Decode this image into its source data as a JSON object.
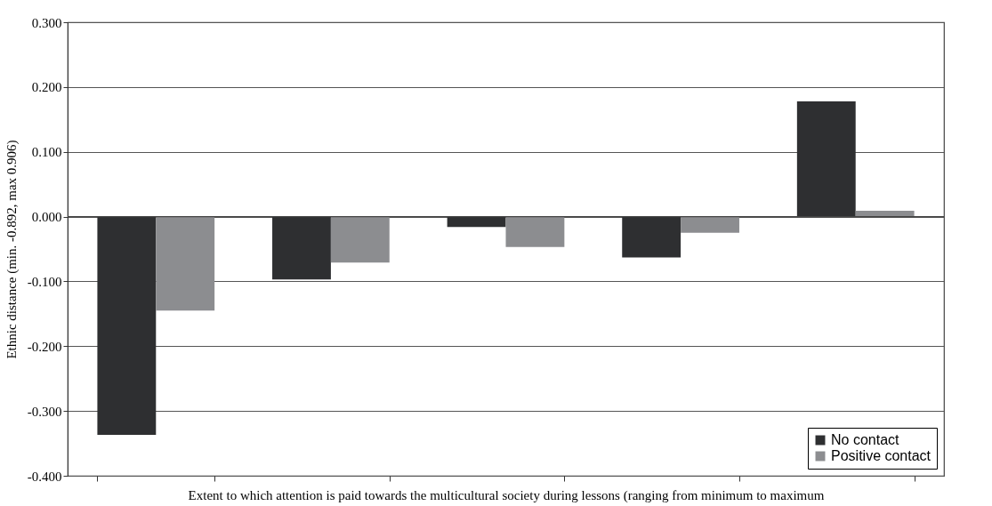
{
  "chart_data": {
    "type": "bar",
    "xlabel": "Extent to which attention is paid towards the multicultural society during lessons (ranging from minimum to maximum",
    "ylabel": "Ethnic distance (min. -0.892, max 0.906)",
    "categories": [
      null,
      null,
      null,
      null,
      null
    ],
    "series": [
      {
        "name": "No contact",
        "color": "#2e2f31",
        "values": [
          -0.337,
          -0.097,
          -0.016,
          -0.063,
          0.178
        ]
      },
      {
        "name": "Positive contact",
        "color": "#8c8d90",
        "values": [
          -0.145,
          -0.071,
          -0.047,
          -0.025,
          0.009
        ]
      }
    ],
    "ylim": [
      -0.4,
      0.3
    ],
    "yticks": [
      {
        "value": -0.4,
        "label": "-0.400"
      },
      {
        "value": -0.3,
        "label": "-0.300"
      },
      {
        "value": -0.2,
        "label": "-0.200"
      },
      {
        "value": -0.1,
        "label": "-0.100"
      },
      {
        "value": 0,
        "label": "0.000"
      },
      {
        "value": 0.1,
        "label": "0.100"
      },
      {
        "value": 0.2,
        "label": "0.200"
      },
      {
        "value": 0.3,
        "label": "0.300"
      }
    ],
    "grid": "y",
    "legend": "bottom right",
    "tick_labels": "y"
  }
}
